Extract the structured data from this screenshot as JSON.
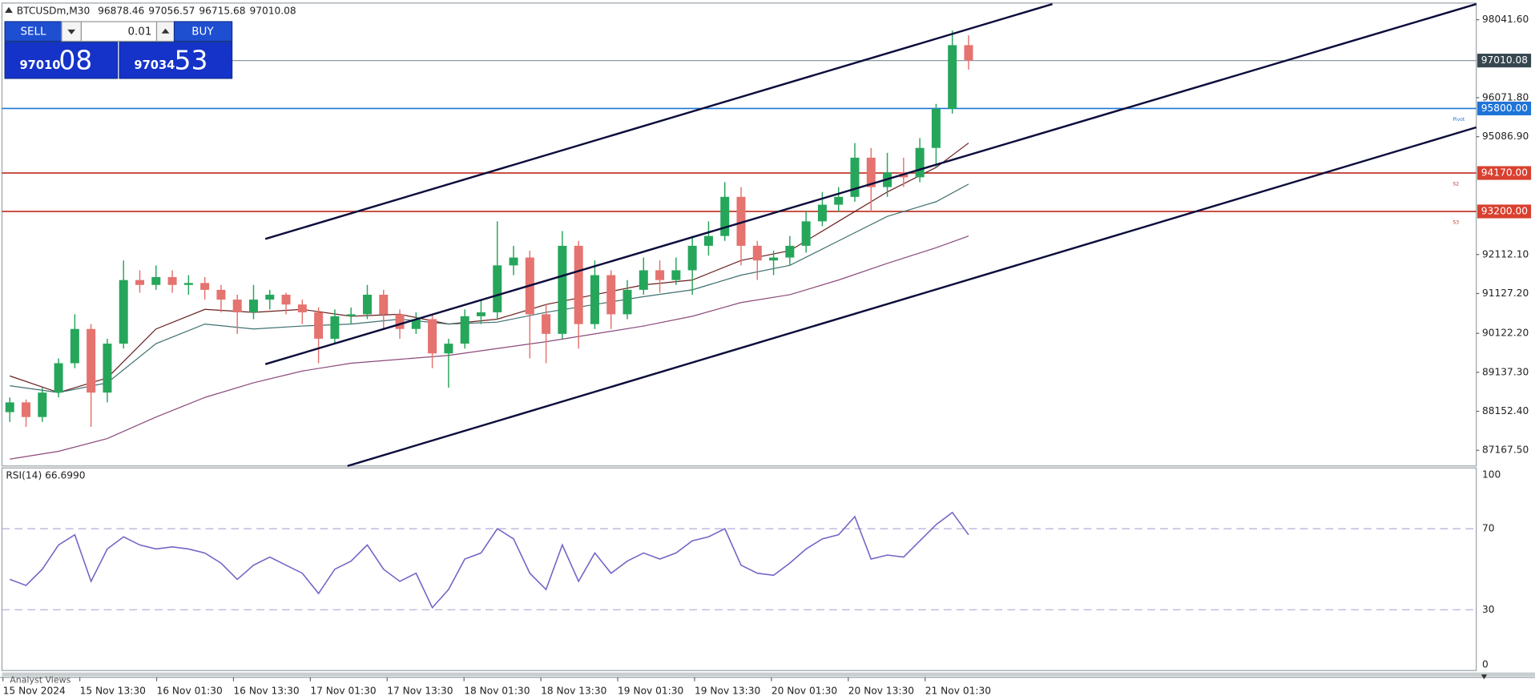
{
  "header": {
    "symbol": "BTCUSDm,M30",
    "open": 96878.46,
    "high": 97056.57,
    "low": 96715.68,
    "close": 97010.08
  },
  "trade_panel": {
    "sell": "SELL",
    "buy": "BUY",
    "lot": 0.01,
    "sell_price": "97010",
    "sell_pips": "08",
    "buy_price": "97034",
    "buy_pips": "53"
  },
  "chart_data": [
    {
      "type": "candlestick",
      "bull_color": "#26a65b",
      "bear_color": "#e5736f",
      "ylim": [
        86772,
        98462
      ],
      "yticks": [
        {
          "value": 98041.6,
          "label": "98041.60"
        },
        {
          "value": 96071.8,
          "label": "96071.80"
        },
        {
          "value": 95086.9,
          "label": "95086.90"
        },
        {
          "value": 92112.1,
          "label": "92112.10"
        },
        {
          "value": 91127.2,
          "label": "91127.20"
        },
        {
          "value": 90122.2,
          "label": "90122.20"
        },
        {
          "value": 89137.3,
          "label": "89137.30"
        },
        {
          "value": 88152.4,
          "label": "88152.40"
        },
        {
          "value": 87167.5,
          "label": "87167.50"
        }
      ],
      "levels": [
        {
          "value": 97010.08,
          "label": "97010.08",
          "color": "#8a9aa0",
          "tag_color": "#37474f"
        },
        {
          "value": 95800,
          "label": "95800.00",
          "color": "#1e74d8",
          "tag_color": "#1e74d8",
          "note": "Pivot"
        },
        {
          "value": 94170,
          "label": "94170.00",
          "color": "#c0392b",
          "tag_color": "#d9402f",
          "note": "S2"
        },
        {
          "value": 93200,
          "label": "93200.00",
          "color": "#c0392b",
          "tag_color": "#d9402f",
          "note": "S3"
        }
      ],
      "candles": [
        [
          88131,
          88502,
          87884,
          88378
        ],
        [
          88378,
          88450,
          87760,
          88008
        ],
        [
          88008,
          88749,
          87884,
          88625
        ],
        [
          88625,
          89490,
          88502,
          89367
        ],
        [
          89367,
          90603,
          89243,
          90232
        ],
        [
          90232,
          90355,
          87760,
          88625
        ],
        [
          88625,
          89985,
          88378,
          89861
        ],
        [
          89861,
          91962,
          89737,
          91467
        ],
        [
          91467,
          91714,
          91146,
          91344
        ],
        [
          91344,
          91838,
          91220,
          91542
        ],
        [
          91542,
          91714,
          91146,
          91344
        ],
        [
          91344,
          91591,
          91097,
          91393
        ],
        [
          91393,
          91542,
          90973,
          91220
        ],
        [
          91220,
          91344,
          90652,
          90973
        ],
        [
          90973,
          91097,
          90108,
          90652
        ],
        [
          90652,
          91344,
          90479,
          90973
        ],
        [
          90973,
          91220,
          90726,
          91097
        ],
        [
          91097,
          91146,
          90603,
          90850
        ],
        [
          90850,
          90973,
          90355,
          90652
        ],
        [
          90652,
          90775,
          89367,
          89985
        ],
        [
          89985,
          90726,
          89861,
          90553
        ],
        [
          90553,
          90775,
          90355,
          90603
        ],
        [
          90603,
          91344,
          90479,
          91097
        ],
        [
          91097,
          91220,
          90232,
          90603
        ],
        [
          90603,
          90726,
          89985,
          90232
        ],
        [
          90232,
          90652,
          90108,
          90479
        ],
        [
          90479,
          90603,
          89243,
          89614
        ],
        [
          89614,
          89985,
          88749,
          89861
        ],
        [
          89861,
          90726,
          89737,
          90553
        ],
        [
          90553,
          90973,
          90355,
          90652
        ],
        [
          90652,
          92950,
          90479,
          91838
        ],
        [
          91838,
          92332,
          91591,
          92036
        ],
        [
          92036,
          92209,
          89490,
          90603
        ],
        [
          90603,
          90850,
          89367,
          90108
        ],
        [
          90108,
          92703,
          89985,
          92332
        ],
        [
          92332,
          92456,
          89737,
          90355
        ],
        [
          90355,
          91962,
          90232,
          91591
        ],
        [
          91591,
          91714,
          90232,
          90603
        ],
        [
          90603,
          91467,
          90479,
          91220
        ],
        [
          91220,
          92036,
          91097,
          91714
        ],
        [
          91714,
          91962,
          91146,
          91467
        ],
        [
          91467,
          92036,
          91344,
          91714
        ],
        [
          91714,
          92580,
          91097,
          92332
        ],
        [
          92332,
          92950,
          92085,
          92580
        ],
        [
          92580,
          93939,
          92456,
          93568
        ],
        [
          93568,
          93815,
          91838,
          92332
        ],
        [
          92332,
          92456,
          91467,
          91962
        ],
        [
          91962,
          92209,
          91591,
          92036
        ],
        [
          92036,
          92580,
          91838,
          92332
        ],
        [
          92332,
          93197,
          92160,
          92950
        ],
        [
          92950,
          93692,
          92827,
          93370
        ],
        [
          93370,
          93815,
          93197,
          93568
        ],
        [
          93568,
          94927,
          93444,
          94557
        ],
        [
          94557,
          94804,
          93197,
          93815
        ],
        [
          93815,
          94680,
          93568,
          94186
        ],
        [
          94186,
          94557,
          93815,
          94062
        ],
        [
          94062,
          95051,
          93939,
          94804
        ],
        [
          94804,
          95916,
          94310,
          95792
        ],
        [
          95792,
          97770,
          95669,
          97399
        ],
        [
          97399,
          97646,
          96781,
          97010.08
        ]
      ],
      "moving_averages": [
        {
          "color": "#6b1f1f",
          "x": [
            0,
            3,
            6,
            9,
            12,
            15,
            18,
            21,
            24,
            27,
            30,
            33,
            36,
            39,
            42,
            45,
            48,
            51,
            54,
            57,
            59
          ],
          "values": [
            89046,
            88625,
            88996,
            90232,
            90726,
            90652,
            90726,
            90553,
            90603,
            90355,
            90479,
            90850,
            91097,
            91344,
            91467,
            91962,
            92209,
            92950,
            93692,
            94310,
            94927
          ]
        },
        {
          "color": "#3f7070",
          "x": [
            0,
            3,
            6,
            9,
            12,
            15,
            18,
            21,
            24,
            27,
            30,
            33,
            36,
            39,
            42,
            45,
            48,
            51,
            54,
            57,
            59
          ],
          "values": [
            88798,
            88625,
            88873,
            89861,
            90355,
            90232,
            90306,
            90355,
            90479,
            90355,
            90405,
            90652,
            90850,
            91047,
            91220,
            91591,
            91838,
            92456,
            93074,
            93444,
            93889
          ]
        },
        {
          "color": "#8b4a7a",
          "x": [
            0,
            3,
            6,
            9,
            12,
            15,
            18,
            21,
            24,
            27,
            30,
            33,
            36,
            39,
            42,
            45,
            48,
            51,
            54,
            57,
            59
          ],
          "values": [
            86945,
            87143,
            87464,
            88008,
            88502,
            88873,
            89169,
            89367,
            89466,
            89565,
            89737,
            89910,
            90108,
            90306,
            90553,
            90899,
            91097,
            91467,
            91888,
            92283,
            92580
          ]
        }
      ],
      "time_labels": [
        "15 Nov 2024",
        "15 Nov 13:30",
        "16 Nov 01:30",
        "16 Nov 13:30",
        "17 Nov 01:30",
        "17 Nov 13:30",
        "18 Nov 01:30",
        "18 Nov 13:30",
        "19 Nov 01:30",
        "19 Nov 13:30",
        "20 Nov 01:30",
        "20 Nov 13:30",
        "21 Nov 01:30"
      ]
    },
    {
      "type": "line",
      "title": "RSI(14) 66.6990",
      "color": "#7565c6",
      "ylim": [
        0,
        100
      ],
      "yticks": [
        100,
        70,
        30,
        0
      ],
      "values": [
        45,
        42,
        50,
        62,
        67,
        44,
        60,
        66,
        62,
        60,
        61,
        60,
        58,
        53,
        45,
        52,
        56,
        52,
        48,
        38,
        50,
        54,
        62,
        50,
        44,
        48,
        31,
        40,
        55,
        58,
        70,
        65,
        48,
        40,
        62,
        44,
        58,
        48,
        54,
        58,
        55,
        58,
        64,
        66,
        70,
        52,
        48,
        47,
        53,
        60,
        65,
        67,
        76,
        55,
        57,
        56,
        64,
        72,
        78,
        67
      ]
    }
  ],
  "footer": {
    "tab": "Analyst Views"
  }
}
